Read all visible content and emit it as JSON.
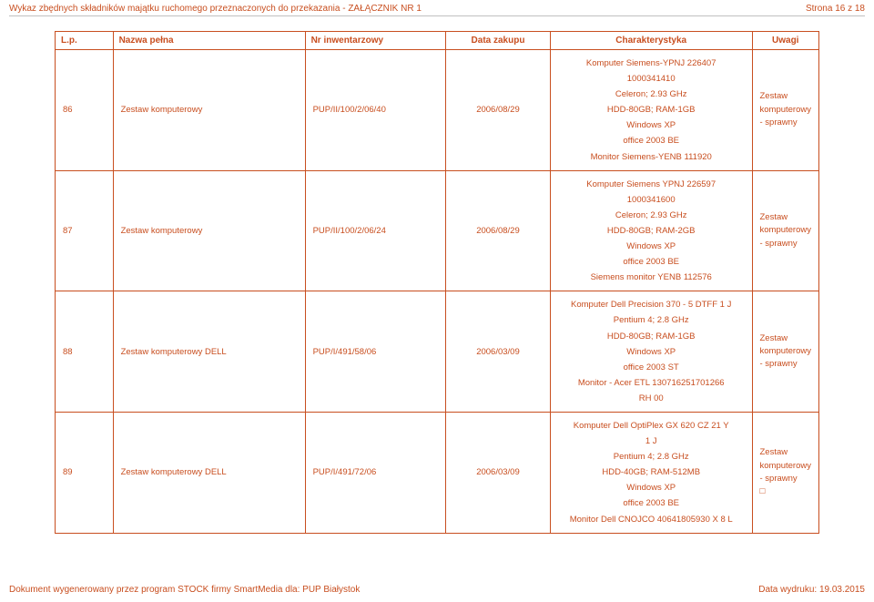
{
  "header": {
    "title": "Wykaz zbędnych składników majątku ruchomego przeznaczonych do przekazania - ZAŁĄCZNIK NR 1",
    "page_info": "Strona 16 z 18"
  },
  "columns": {
    "lp": "L.p.",
    "name": "Nazwa pełna",
    "inv": "Nr inwentarzowy",
    "date": "Data zakupu",
    "char": "Charakterystyka",
    "rem": "Uwagi"
  },
  "rows": [
    {
      "lp": "86",
      "name": "Zestaw komputerowy",
      "inv": "PUP/II/100/2/06/40",
      "date": "2006/08/29",
      "char": [
        "Komputer Siemens-YPNJ 226407",
        "1000341410",
        "Celeron; 2.93 GHz",
        "HDD-80GB; RAM-1GB",
        "Windows XP",
        "office 2003 BE",
        "Monitor Siemens-YENB 111920"
      ],
      "rem": [
        "Zestaw komputerowy - sprawny"
      ]
    },
    {
      "lp": "87",
      "name": "Zestaw komputerowy",
      "inv": "PUP/II/100/2/06/24",
      "date": "2006/08/29",
      "char": [
        "Komputer Siemens  YPNJ 226597",
        "1000341600",
        "Celeron; 2.93 GHz",
        "HDD-80GB; RAM-2GB",
        "Windows XP",
        "office 2003 BE",
        "Siemens monitor YENB 112576"
      ],
      "rem": [
        "Zestaw komputerowy - sprawny"
      ]
    },
    {
      "lp": "88",
      "name": "Zestaw komputerowy DELL",
      "inv": "PUP/I/491/58/06",
      "date": "2006/03/09",
      "char": [
        "Komputer Dell Precision 370 - 5 DTFF 1 J",
        "Pentium 4; 2.8 GHz",
        "HDD-80GB; RAM-1GB",
        "Windows XP",
        "office 2003 ST",
        "Monitor - Acer ETL 130716251701266",
        "RH 00"
      ],
      "rem": [
        "Zestaw komputerowy - sprawny"
      ]
    },
    {
      "lp": "89",
      "name": "Zestaw komputerowy DELL",
      "inv": "PUP/I/491/72/06",
      "date": "2006/03/09",
      "char": [
        "Komputer Dell OptiPlex GX 620 CZ 21 Y",
        "1 J",
        "Pentium 4; 2.8 GHz",
        "HDD-40GB; RAM-512MB",
        "Windows XP",
        "office 2003 BE",
        "Monitor Dell CNOJCO 40641805930 X 8 L"
      ],
      "rem": [
        "Zestaw komputerowy - sprawny",
        "□"
      ]
    }
  ],
  "footer": {
    "left": "Dokument wygenerowany przez program STOCK firmy SmartMedia dla: PUP Białystok",
    "right": "Data wydruku: 19.03.2015"
  },
  "colors": {
    "accent": "#c84e1f",
    "background": "#ffffff"
  }
}
